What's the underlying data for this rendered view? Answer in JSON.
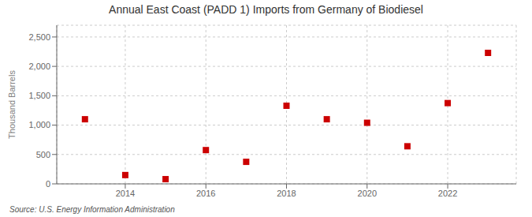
{
  "chart_data": {
    "type": "scatter",
    "title": "Annual East Coast (PADD 1) Imports from Germany of Biodiesel",
    "y_label": "Thousand Barrels",
    "annotations": [
      "Source: U.S. Energy Information Administration"
    ],
    "x": [
      2013,
      2014,
      2015,
      2016,
      2017,
      2018,
      2019,
      2020,
      2021,
      2022,
      2023
    ],
    "values": [
      1100,
      150,
      80,
      575,
      375,
      1330,
      1100,
      1040,
      640,
      1375,
      2230
    ],
    "xlim": [
      2012.3,
      2023.7
    ],
    "xticks": [
      2014,
      2016,
      2018,
      2020,
      2022
    ],
    "ylim": [
      0,
      2700
    ],
    "yticks": [
      0,
      500,
      {
        "value": 1000,
        "label": "1,000"
      },
      {
        "value": 1500,
        "label": "1,500"
      },
      {
        "value": 2000,
        "label": "2,000"
      },
      {
        "value": 2500,
        "label": "2,500"
      }
    ],
    "color": "#cc0000",
    "marker": "square",
    "grid": true
  }
}
